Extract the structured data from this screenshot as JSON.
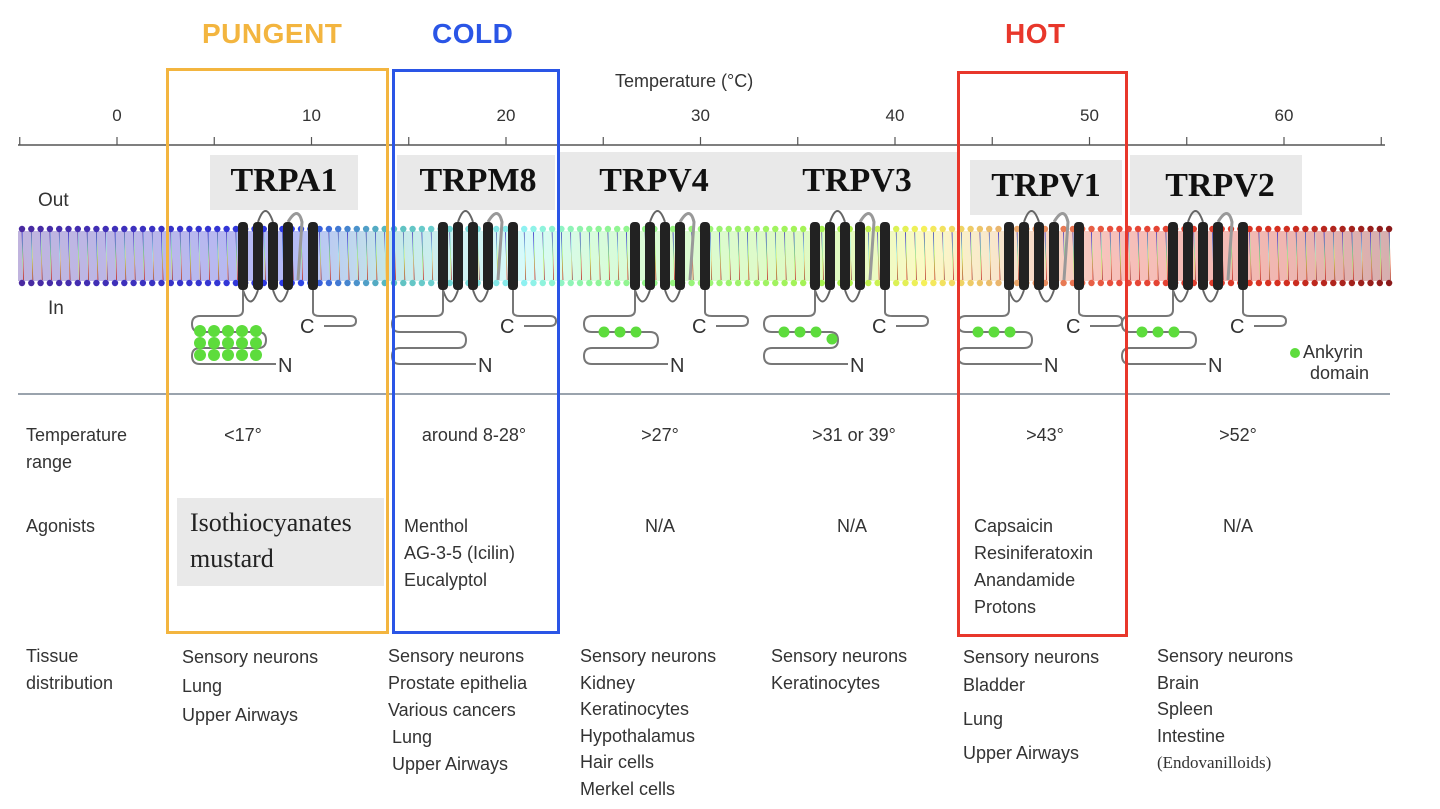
{
  "categories": {
    "pungent": "PUNGENT",
    "cold": "COLD",
    "hot": "HOT"
  },
  "colors": {
    "pungent": "#f3b53f",
    "cold": "#2a55e6",
    "hot": "#e8372b",
    "ankyrin": "#5ddc3c",
    "channel": "#222222"
  },
  "axis": {
    "title": "Temperature (°C)",
    "ticks": [
      "0",
      "10",
      "20",
      "30",
      "40",
      "50",
      "60"
    ]
  },
  "side_labels": {
    "out": "Out",
    "in": "In"
  },
  "legend": {
    "ankyrin_line1": "Ankyrin",
    "ankyrin_line2": "domain"
  },
  "row_labels": {
    "temperature": [
      "Temperature",
      "range"
    ],
    "agonists": "Agonists",
    "tissue": [
      "Tissue",
      "distribution"
    ]
  },
  "channels": [
    {
      "name": "TRPA1",
      "temp_range": "<17°",
      "agonists": [
        "Isothiocyanates",
        "mustard"
      ],
      "tissue": [
        "Sensory neurons",
        "Lung",
        "Upper Airways"
      ],
      "ankyrin_count": 15
    },
    {
      "name": "TRPM8",
      "temp_range": "around 8-28°",
      "agonists": [
        "Menthol",
        "AG-3-5 (Icilin)",
        "Eucalyptol"
      ],
      "tissue": [
        "Sensory neurons",
        "Prostate epithelia",
        "Various cancers",
        "Lung",
        "Upper Airways"
      ],
      "ankyrin_count": 0
    },
    {
      "name": "TRPV4",
      "temp_range": ">27°",
      "agonists": [
        "N/A"
      ],
      "tissue": [
        "Sensory neurons",
        "Kidney",
        "Keratinocytes",
        "Hypothalamus",
        "Hair cells",
        "Merkel cells"
      ],
      "ankyrin_count": 3
    },
    {
      "name": "TRPV3",
      "temp_range": ">31 or 39°",
      "agonists": [
        "N/A"
      ],
      "tissue": [
        "Sensory neurons",
        "Keratinocytes"
      ],
      "ankyrin_count": 4
    },
    {
      "name": "TRPV1",
      "temp_range": ">43°",
      "agonists": [
        "Capsaicin",
        "Resiniferatoxin",
        "Anandamide",
        "Protons"
      ],
      "tissue": [
        "Sensory neurons",
        "Bladder",
        "Lung",
        "Upper Airways"
      ],
      "ankyrin_count": 3
    },
    {
      "name": "TRPV2",
      "temp_range": ">52°",
      "agonists": [
        "N/A"
      ],
      "tissue": [
        "Sensory neurons",
        "Brain",
        "Spleen",
        "Intestine",
        "(Endovanilloids)"
      ],
      "ankyrin_count": 3
    }
  ]
}
